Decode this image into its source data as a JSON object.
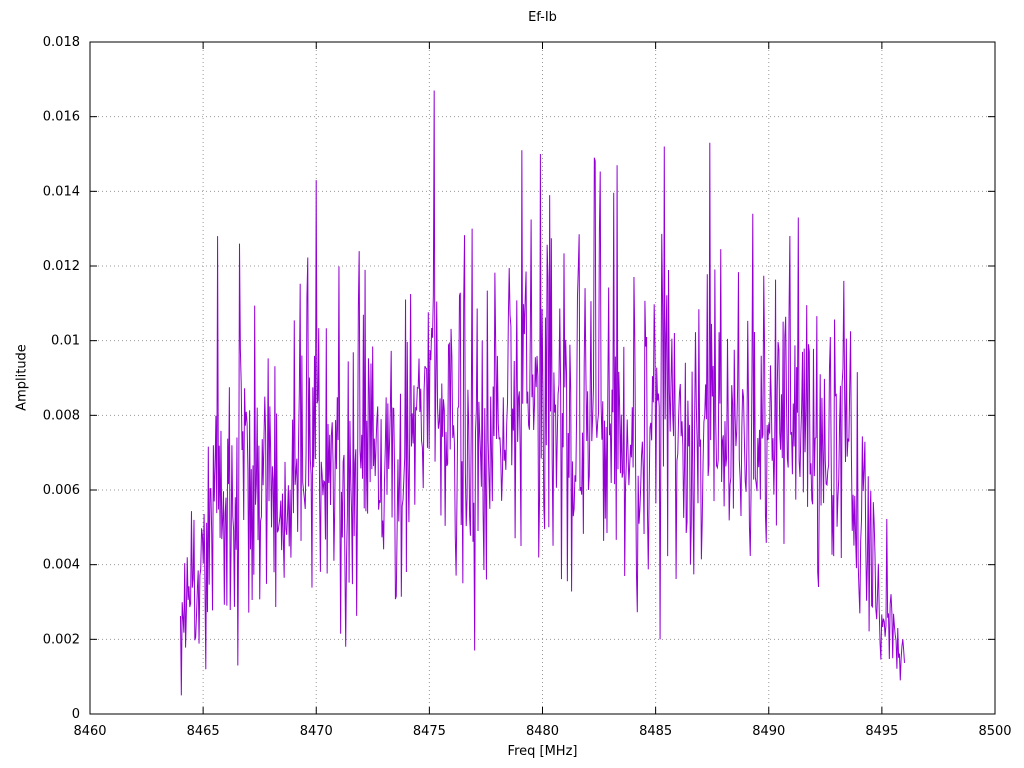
{
  "chart_data": {
    "type": "line",
    "title": "Ef-Ib",
    "xlabel": "Freq [MHz]",
    "ylabel": "Amplitude",
    "xlim": [
      8460,
      8500
    ],
    "ylim": [
      0,
      0.018
    ],
    "xticks": [
      8460,
      8465,
      8470,
      8475,
      8480,
      8485,
      8490,
      8495,
      8500
    ],
    "xtick_labels": [
      "8460",
      "8465",
      "8470",
      "8475",
      "8480",
      "8485",
      "8490",
      "8495",
      "8500"
    ],
    "yticks": [
      0,
      0.002,
      0.004,
      0.006,
      0.008,
      0.01,
      0.012,
      0.014,
      0.016,
      0.018
    ],
    "ytick_labels": [
      "0",
      "0.002",
      "0.004",
      "0.006",
      "0.008",
      "0.01",
      "0.012",
      "0.014",
      "0.016",
      "0.018"
    ],
    "grid": true,
    "grid_style": "dotted",
    "legend": "none",
    "line_color": "#9400d3",
    "border_color": "#000000",
    "grid_color": "#9a9a9a",
    "series_name": "Ef-Ib",
    "signal": {
      "x_start": 8464.0,
      "x_end": 8496.0,
      "samples": 860,
      "seed": 1337,
      "envelope": [
        [
          8464.0,
          0.0005,
          0.0055
        ],
        [
          8464.4,
          0.0018,
          0.006
        ],
        [
          8465.0,
          0.0012,
          0.0068
        ],
        [
          8465.6,
          0.0025,
          0.0128
        ],
        [
          8466.0,
          0.0015,
          0.0105
        ],
        [
          8466.6,
          0.0013,
          0.0126
        ],
        [
          8467.2,
          0.003,
          0.0118
        ],
        [
          8468.0,
          0.0028,
          0.01
        ],
        [
          8468.8,
          0.0026,
          0.0105
        ],
        [
          8469.5,
          0.003,
          0.012
        ],
        [
          8470.0,
          0.003,
          0.0143
        ],
        [
          8470.5,
          0.0028,
          0.0125
        ],
        [
          8471.2,
          0.0018,
          0.0122
        ],
        [
          8472.0,
          0.0024,
          0.0124
        ],
        [
          8472.8,
          0.0026,
          0.0122
        ],
        [
          8473.5,
          0.0028,
          0.0115
        ],
        [
          8474.2,
          0.003,
          0.012
        ],
        [
          8475.2,
          0.0035,
          0.0167
        ],
        [
          8476.0,
          0.003,
          0.0125
        ],
        [
          8476.8,
          0.0017,
          0.013
        ],
        [
          8477.6,
          0.0035,
          0.0132
        ],
        [
          8478.4,
          0.004,
          0.0138
        ],
        [
          8479.1,
          0.0045,
          0.0151
        ],
        [
          8479.8,
          0.0042,
          0.015
        ],
        [
          8480.4,
          0.004,
          0.0139
        ],
        [
          8481.2,
          0.0032,
          0.0128
        ],
        [
          8482.2,
          0.0038,
          0.0149
        ],
        [
          8483.2,
          0.0032,
          0.0147
        ],
        [
          8484.0,
          0.0028,
          0.0122
        ],
        [
          8485.0,
          0.002,
          0.0147
        ],
        [
          8485.5,
          0.003,
          0.0152
        ],
        [
          8486.3,
          0.0038,
          0.0127
        ],
        [
          8487.4,
          0.003,
          0.0153
        ],
        [
          8488.2,
          0.0034,
          0.0125
        ],
        [
          8489.2,
          0.0038,
          0.0134
        ],
        [
          8490.0,
          0.0034,
          0.0126
        ],
        [
          8491.2,
          0.0038,
          0.0133
        ],
        [
          8492.0,
          0.003,
          0.0121
        ],
        [
          8493.0,
          0.0032,
          0.0117
        ],
        [
          8493.8,
          0.0028,
          0.0111
        ],
        [
          8494.4,
          0.002,
          0.0095
        ],
        [
          8495.0,
          0.0012,
          0.006
        ],
        [
          8495.5,
          0.0008,
          0.005
        ],
        [
          8496.0,
          0.001,
          0.0023
        ]
      ],
      "peaks": [
        [
          8465.65,
          0.0128
        ],
        [
          8466.6,
          0.0126
        ],
        [
          8470.0,
          0.0143
        ],
        [
          8471.9,
          0.0124
        ],
        [
          8475.2,
          0.0167
        ],
        [
          8476.9,
          0.013
        ],
        [
          8479.1,
          0.0151
        ],
        [
          8479.9,
          0.015
        ],
        [
          8480.3,
          0.0139
        ],
        [
          8482.3,
          0.0149
        ],
        [
          8483.3,
          0.0147
        ],
        [
          8485.4,
          0.0152
        ],
        [
          8487.4,
          0.0153
        ],
        [
          8489.3,
          0.0134
        ],
        [
          8491.3,
          0.0133
        ],
        [
          8493.3,
          0.0116
        ]
      ],
      "dips": [
        [
          8464.05,
          0.0005
        ],
        [
          8465.1,
          0.0012
        ],
        [
          8466.55,
          0.0013
        ],
        [
          8471.3,
          0.0018
        ],
        [
          8477.0,
          0.0017
        ],
        [
          8485.2,
          0.002
        ],
        [
          8495.8,
          0.0009
        ]
      ]
    }
  }
}
